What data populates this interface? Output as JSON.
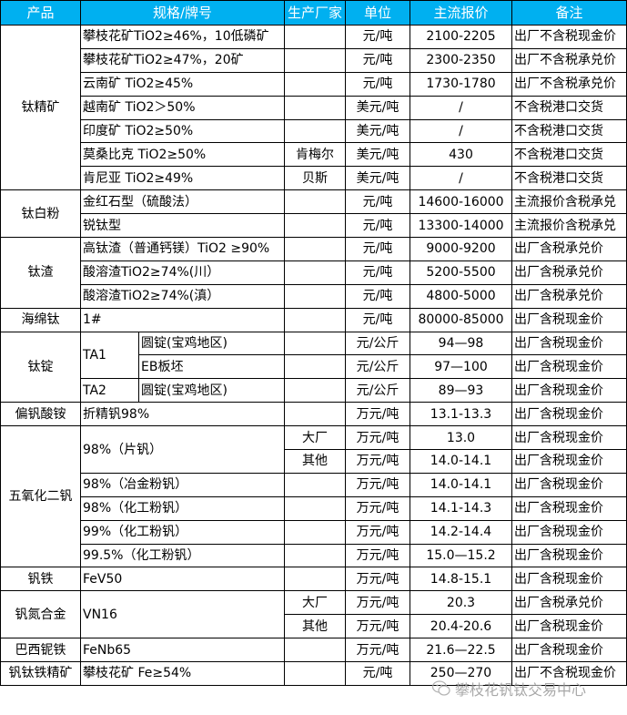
{
  "header": {
    "product": "产品",
    "spec": "规格/牌号",
    "producer": "生产厂家",
    "unit": "单位",
    "price": "主流报价",
    "remark": "备注"
  },
  "colors": {
    "header_bg": "#00B0F0",
    "header_text": "#FFFFFF"
  },
  "groups": [
    {
      "product": "钛精矿",
      "specs": [
        {
          "name": "攀枝花矿TiO2≥46%，10低磷矿",
          "rows": [
            {
              "producer": "",
              "unit": "元/吨",
              "price": "2100-2205",
              "remark": "出厂不含税现金价"
            }
          ]
        },
        {
          "name": "攀枝花矿TiO2≥47%，20矿",
          "rows": [
            {
              "producer": "",
              "unit": "元/吨",
              "price": "2300-2350",
              "remark": "出厂不含税承兑价"
            }
          ]
        },
        {
          "name": "云南矿 TiO2≥45%",
          "rows": [
            {
              "producer": "",
              "unit": "元/吨",
              "price": "1730-1780",
              "remark": "出厂不含税承兑价"
            }
          ]
        },
        {
          "name": "越南矿 TiO2＞50%",
          "rows": [
            {
              "producer": "",
              "unit": "美元/吨",
              "price": "/",
              "remark": "不含税港口交货"
            }
          ]
        },
        {
          "name": "印度矿 TiO2≥50%",
          "rows": [
            {
              "producer": "",
              "unit": "美元/吨",
              "price": "/",
              "remark": "不含税港口交货"
            }
          ]
        },
        {
          "name": "莫桑比克 TiO2≥50%",
          "rows": [
            {
              "producer": "肯梅尔",
              "unit": "美元/吨",
              "price": "430",
              "remark": "不含税港口交货"
            }
          ]
        },
        {
          "name": "肯尼亚 TiO2≥49%",
          "rows": [
            {
              "producer": "贝斯",
              "unit": "美元/吨",
              "price": "/",
              "remark": "不含税港口交货"
            }
          ]
        }
      ]
    },
    {
      "product": "钛白粉",
      "specs": [
        {
          "name": "金红石型（硫酸法）",
          "rows": [
            {
              "producer": "",
              "unit": "元/吨",
              "price": "14600-16000",
              "remark": "主流报价含税承兑"
            }
          ]
        },
        {
          "name": "锐钛型",
          "rows": [
            {
              "producer": "",
              "unit": "元/吨",
              "price": "13300-14000",
              "remark": "主流报价含税承兑"
            }
          ]
        }
      ]
    },
    {
      "product": "钛渣",
      "specs": [
        {
          "name": "高钛渣（普通钙镁）TiO2 ≥90%",
          "rows": [
            {
              "producer": "",
              "unit": "元/吨",
              "price": "9000-9200",
              "remark": "出厂含税承兑价"
            }
          ]
        },
        {
          "name": "酸溶渣TiO2≥74%(川）",
          "rows": [
            {
              "producer": "",
              "unit": "元/吨",
              "price": "5200-5500",
              "remark": "出厂含税承兑价"
            }
          ]
        },
        {
          "name": "酸溶渣TiO2≥74%(滇）",
          "rows": [
            {
              "producer": "",
              "unit": "元/吨",
              "price": "4800-5000",
              "remark": "出厂含税承兑价"
            }
          ]
        }
      ]
    },
    {
      "product": "海绵钛",
      "specs": [
        {
          "name": "1#",
          "rows": [
            {
              "producer": "",
              "unit": "元/吨",
              "price": "80000-85000",
              "remark": "出厂含税现金价"
            }
          ]
        }
      ]
    },
    {
      "product": "钛锭",
      "specs": [
        {
          "name": "TA1",
          "rows": [
            {
              "sub": "圆锭(宝鸡地区)",
              "producer": "",
              "unit": "元/公斤",
              "price": "94—98",
              "remark": "出厂含税现金价"
            },
            {
              "sub": "EB板坯",
              "producer": "",
              "unit": "元/公斤",
              "price": "97—100",
              "remark": "出厂含税现金价"
            }
          ]
        },
        {
          "name": "TA2",
          "rows": [
            {
              "sub": "圆锭(宝鸡地区)",
              "producer": "",
              "unit": "元/公斤",
              "price": "89—93",
              "remark": "出厂含税现金价"
            }
          ]
        }
      ]
    },
    {
      "product": "偏钒酸铵",
      "specs": [
        {
          "name": "折精钒98%",
          "rows": [
            {
              "producer": "",
              "unit": "万元/吨",
              "price": "13.1-13.3",
              "remark": "出厂含税现金价"
            }
          ]
        }
      ]
    },
    {
      "product": "五氧化二钒",
      "specs": [
        {
          "name": "98%（片钒）",
          "rows": [
            {
              "producer": "大厂",
              "unit": "万元/吨",
              "price": "13.0",
              "remark": "出厂含税现金价"
            },
            {
              "producer": "其他",
              "unit": "万元/吨",
              "price": "14.0-14.1",
              "remark": "出厂含税现金价"
            }
          ]
        },
        {
          "name": "98%（冶金粉钒）",
          "rows": [
            {
              "producer": "",
              "unit": "万元/吨",
              "price": "14.0-14.1",
              "remark": "出厂含税现金价"
            }
          ]
        },
        {
          "name": "98%（化工粉钒）",
          "rows": [
            {
              "producer": "",
              "unit": "万元/吨",
              "price": "14.1-14.3",
              "remark": "出厂含税现金价"
            }
          ]
        },
        {
          "name": "99%（化工粉钒）",
          "rows": [
            {
              "producer": "",
              "unit": "万元/吨",
              "price": "14.2-14.4",
              "remark": "出厂含税现金价"
            }
          ]
        },
        {
          "name": "99.5%（化工粉钒）",
          "rows": [
            {
              "producer": "",
              "unit": "万元/吨",
              "price": "15.0—15.2",
              "remark": "出厂含税现金价"
            }
          ]
        }
      ]
    },
    {
      "product": "钒铁",
      "specs": [
        {
          "name": "FeV50",
          "rows": [
            {
              "producer": "",
              "unit": "万元/吨",
              "price": "14.8-15.1",
              "remark": "出厂含税现金价"
            }
          ]
        }
      ]
    },
    {
      "product": "钒氮合金",
      "specs": [
        {
          "name": "VN16",
          "rows": [
            {
              "producer": "大厂",
              "unit": "万元/吨",
              "price": "20.3",
              "remark": "出厂含税承兑价"
            },
            {
              "producer": "其他",
              "unit": "万元/吨",
              "price": "20.4-20.6",
              "remark": "出厂含税现金价"
            }
          ]
        }
      ]
    },
    {
      "product": "巴西铌铁",
      "specs": [
        {
          "name": "FeNb65",
          "rows": [
            {
              "producer": "",
              "unit": "万元/吨",
              "price": "21.6—22.5",
              "remark": "出厂含税现金价"
            }
          ]
        }
      ]
    },
    {
      "product": "钒钛铁精矿",
      "specs": [
        {
          "name": "攀枝花矿 Fe≥54%",
          "rows": [
            {
              "producer": "",
              "unit": "元/吨",
              "price": "250—270",
              "remark": "出厂不含税现金价"
            }
          ]
        }
      ]
    }
  ],
  "watermark": {
    "text": "攀枝花钒钛交易中心",
    "icon": "wechat-icon"
  }
}
